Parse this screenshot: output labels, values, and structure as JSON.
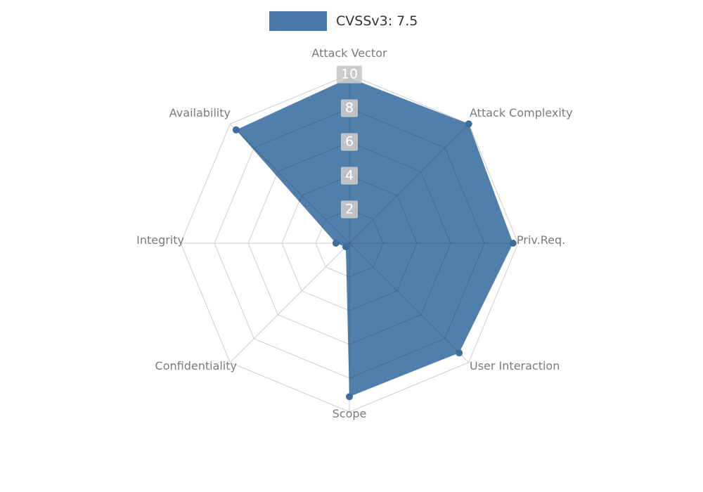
{
  "legend": {
    "label": "CVSSv3: 7.5"
  },
  "chart_data": {
    "type": "radar",
    "title": "CVSSv3: 7.5",
    "categories": [
      "Attack Vector",
      "Attack Complexity",
      "Priv.Req.",
      "User Interaction",
      "Scope",
      "Confidentiality",
      "Integrity",
      "Availability"
    ],
    "series": [
      {
        "name": "CVSSv3: 7.5",
        "values": [
          9.8,
          10,
          9.7,
          9.2,
          9.1,
          0.3,
          0.8,
          9.5
        ],
        "fill_color": "#4878a8",
        "dot_color": "#3e6d9c"
      }
    ],
    "ticks": [
      2,
      4,
      6,
      8,
      10
    ],
    "rmax": 10,
    "grid": true,
    "grid_color": "#cccccc",
    "legend_position": "top",
    "axis_label_color": "#7b7b7b"
  }
}
